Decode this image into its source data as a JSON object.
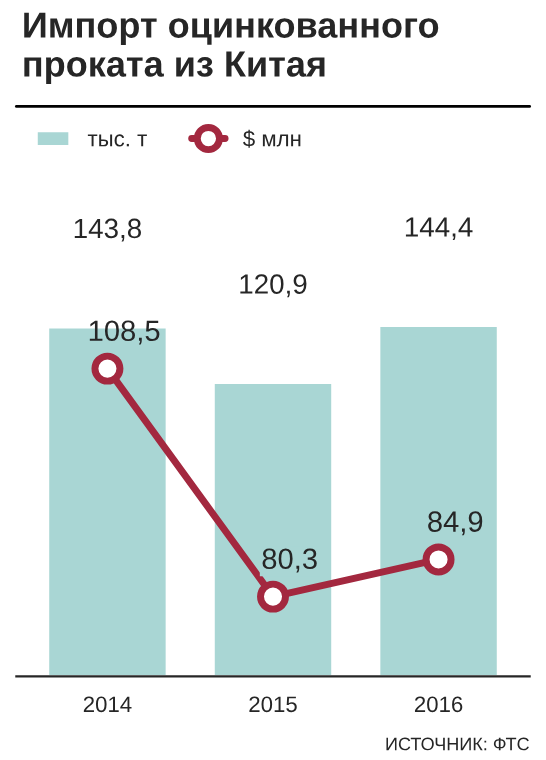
{
  "chart_data": {
    "type": "bar",
    "title": "Импорт оцинкованного проката из Китая",
    "categories": [
      "2014",
      "2015",
      "2016"
    ],
    "series": [
      {
        "name": "тыс. т",
        "color": "#a9d6d4",
        "values": [
          143.8,
          120.9,
          144.4
        ],
        "value_labels": [
          "143,8",
          "120,9",
          "144,4"
        ]
      },
      {
        "name": "$ млн",
        "type": "line",
        "axis": "y2",
        "color": "#a3283f",
        "values": [
          108.5,
          80.3,
          84.9
        ],
        "value_labels": [
          "108,5",
          "80,3",
          "84,9"
        ]
      }
    ],
    "marker": "circle",
    "legend": "top",
    "grid": false,
    "tick_labels": "x",
    "annotations": [
      "ИСТОЧНИК: ФТС"
    ]
  }
}
